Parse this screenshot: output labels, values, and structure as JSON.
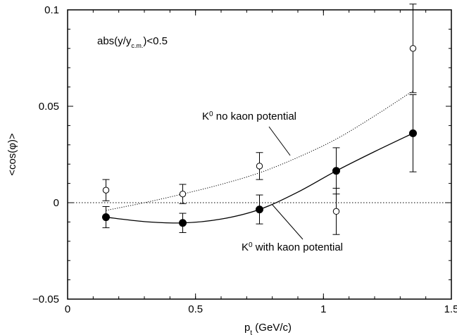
{
  "chart_data": {
    "type": "scatter",
    "xlabel": {
      "main": "p",
      "sub": "t",
      "rest": " (GeV/c)"
    },
    "ylabel": "<cos(φ)>",
    "xlim": [
      0,
      1.5
    ],
    "ylim": [
      -0.05,
      0.1
    ],
    "xticks": [
      0,
      0.5,
      1,
      1.5
    ],
    "xtick_labels": [
      "0",
      "0.5",
      "1",
      "1.5"
    ],
    "yticks": [
      -0.05,
      0,
      0.05,
      0.1
    ],
    "ytick_labels": [
      "−0.05",
      "0",
      "0.05",
      "0.1"
    ],
    "grid": false,
    "reference_line": {
      "y": 0,
      "style": "dotted"
    },
    "cut_label": {
      "pre": "abs(y/y",
      "sub": "c.m.",
      "post": ")<0.5"
    },
    "series": [
      {
        "marker": "open-circle",
        "x": [
          0.15,
          0.45,
          0.75,
          1.05,
          1.35
        ],
        "y": [
          0.0065,
          0.0045,
          0.019,
          -0.0045,
          0.08
        ],
        "err": [
          0.0055,
          0.005,
          0.007,
          0.012,
          0.023
        ],
        "curve_style": "dotted",
        "curve_x": [
          0.15,
          0.3,
          0.45,
          0.6,
          0.75,
          0.9,
          1.05,
          1.2,
          1.35
        ],
        "curve_y": [
          -0.004,
          0.0,
          0.0045,
          0.0095,
          0.0155,
          0.0235,
          0.033,
          0.045,
          0.058
        ],
        "label": {
          "main": "K",
          "sup": "0",
          "rest": " no kaon potential"
        }
      },
      {
        "marker": "filled-circle",
        "x": [
          0.15,
          0.45,
          0.75,
          1.05,
          1.35
        ],
        "y": [
          -0.0075,
          -0.0105,
          -0.0035,
          0.0165,
          0.036
        ],
        "err": [
          0.0055,
          0.005,
          0.0075,
          0.012,
          0.02
        ],
        "curve_style": "solid",
        "curve_x": [
          0.15,
          0.3,
          0.45,
          0.6,
          0.75,
          0.9,
          1.05,
          1.2,
          1.35
        ],
        "curve_y": [
          -0.0075,
          -0.0098,
          -0.0105,
          -0.0085,
          -0.0035,
          0.0055,
          0.0165,
          0.0265,
          0.036
        ],
        "label": {
          "main": "K",
          "sup": "0",
          "rest": " with kaon potential"
        }
      }
    ]
  }
}
